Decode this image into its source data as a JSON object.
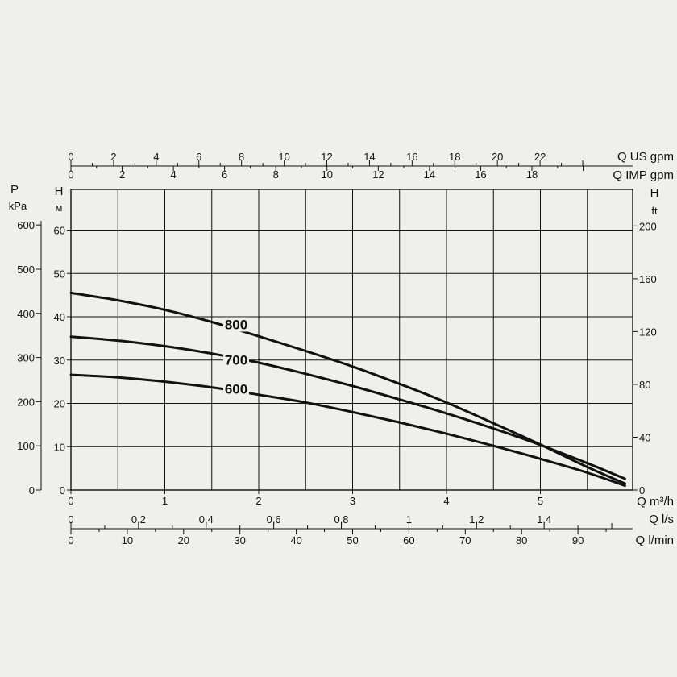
{
  "chart_data": {
    "type": "line",
    "x_unit": "Q m³/h",
    "xlim": [
      0,
      6
    ],
    "ylim": [
      0,
      65
    ],
    "series": [
      {
        "name": "800",
        "x": [
          0,
          0.5,
          1,
          1.5,
          2,
          2.5,
          3,
          3.5,
          4,
          4.5,
          5,
          5.5,
          5.9
        ],
        "y": [
          45.5,
          43.8,
          41.6,
          38.8,
          35.5,
          32.1,
          28.5,
          24.5,
          20.2,
          15.4,
          10.5,
          5.3,
          1.5
        ]
      },
      {
        "name": "700",
        "x": [
          0,
          0.5,
          1,
          1.5,
          2,
          2.5,
          3,
          3.5,
          4,
          4.5,
          5,
          5.5,
          5.9
        ],
        "y": [
          35.4,
          34.5,
          33.2,
          31.5,
          29.4,
          26.8,
          24.0,
          20.9,
          17.7,
          14.2,
          10.4,
          6.2,
          2.6
        ]
      },
      {
        "name": "600",
        "x": [
          0,
          0.5,
          1,
          1.5,
          2,
          2.5,
          3,
          3.5,
          4,
          4.5,
          5,
          5.5,
          5.9
        ],
        "y": [
          26.6,
          26.0,
          25.0,
          23.7,
          22.0,
          20.2,
          18.0,
          15.6,
          13.0,
          10.2,
          7.2,
          4.0,
          1.0
        ]
      }
    ],
    "series_labels": [
      {
        "text": "800",
        "x": 1.76,
        "y": 37.5
      },
      {
        "text": "700",
        "x": 1.76,
        "y": 29.3
      },
      {
        "text": "600",
        "x": 1.76,
        "y": 22.6
      }
    ],
    "axes": {
      "left_h": {
        "title": [
          "H",
          "м"
        ],
        "ticks": [
          "0",
          "10",
          "20",
          "30",
          "40",
          "50",
          "60"
        ],
        "values": [
          0,
          10,
          20,
          30,
          40,
          50,
          60
        ]
      },
      "left_p": {
        "title": [
          "P",
          "kPa"
        ],
        "ticks": [
          "0",
          "100",
          "200",
          "300",
          "400",
          "500",
          "600"
        ],
        "values": [
          0,
          100,
          200,
          300,
          400,
          500,
          600
        ]
      },
      "right_ft": {
        "title": [
          "H",
          "ft"
        ],
        "ticks": [
          "0",
          "40",
          "80",
          "120",
          "160",
          "200"
        ],
        "values": [
          0,
          40,
          80,
          120,
          160,
          200
        ]
      },
      "bottom_m3h": {
        "title": "Q m³/h",
        "ticks": [
          "0",
          "1",
          "2",
          "3",
          "4",
          "5"
        ],
        "values": [
          0,
          1,
          2,
          3,
          4,
          5
        ]
      },
      "bottom_ls": {
        "title": "Q l/s",
        "ticks": [
          "0",
          "0,2",
          "0,4",
          "0,6",
          "0,8",
          "1",
          "1,2",
          "1,4"
        ],
        "values": [
          0,
          0.2,
          0.4,
          0.6,
          0.8,
          1.0,
          1.2,
          1.4
        ]
      },
      "bottom_lmin": {
        "title": "Q l/min",
        "ticks": [
          "0",
          "10",
          "20",
          "30",
          "40",
          "50",
          "60",
          "70",
          "80",
          "90"
        ],
        "values": [
          0,
          10,
          20,
          30,
          40,
          50,
          60,
          70,
          80,
          90
        ]
      },
      "top_usgpm": {
        "title": "Q US gpm",
        "ticks": [
          "0",
          "2",
          "4",
          "6",
          "8",
          "10",
          "12",
          "14",
          "16",
          "18",
          "20",
          "22"
        ],
        "values": [
          0,
          2,
          4,
          6,
          8,
          10,
          12,
          14,
          16,
          18,
          20,
          22
        ]
      },
      "top_impgpm": {
        "title": "Q IMP gpm",
        "ticks": [
          "0",
          "2",
          "4",
          "6",
          "8",
          "10",
          "12",
          "14",
          "16",
          "18"
        ],
        "values": [
          0,
          2,
          4,
          6,
          8,
          10,
          12,
          14,
          16,
          18
        ]
      }
    },
    "grid": true,
    "colors": {
      "background": "#efefed",
      "line": "#111111"
    }
  }
}
